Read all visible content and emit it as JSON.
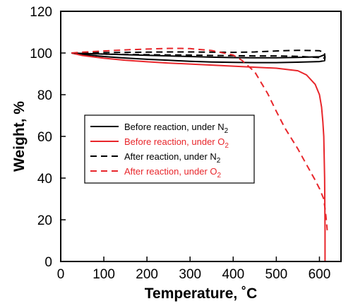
{
  "chart_data": {
    "type": "line",
    "xlabel": "Temperature, ˚C",
    "ylabel": "Weight, %",
    "xlim": [
      0,
      650
    ],
    "ylim": [
      0,
      120
    ],
    "xticks": [
      0,
      100,
      200,
      300,
      400,
      500,
      600
    ],
    "yticks": [
      0,
      20,
      40,
      60,
      80,
      100,
      120
    ],
    "grid": false,
    "legend_position": "center-left",
    "series": [
      {
        "name": "Before reaction, under N",
        "subscript": "2",
        "color": "#000000",
        "dash": "solid",
        "x": [
          25,
          50,
          100,
          150,
          200,
          250,
          300,
          350,
          400,
          450,
          500,
          550,
          600,
          612,
          613,
          612,
          600,
          550,
          500,
          450,
          400,
          350,
          300,
          250,
          200,
          150,
          100,
          50,
          25
        ],
        "y": [
          100,
          99.3,
          98.3,
          97.6,
          97.0,
          96.5,
          96.0,
          95.7,
          95.5,
          95.4,
          95.4,
          95.6,
          95.9,
          96.3,
          98.0,
          99.2,
          98.2,
          97.9,
          97.7,
          97.7,
          97.8,
          98.0,
          98.3,
          98.6,
          98.9,
          99.2,
          99.5,
          99.8,
          100
        ]
      },
      {
        "name": "Before reaction, under O",
        "subscript": "2",
        "color": "#e8262b",
        "dash": "solid",
        "x": [
          25,
          50,
          100,
          150,
          200,
          250,
          300,
          350,
          400,
          450,
          500,
          550,
          570,
          590,
          600,
          605,
          608,
          610,
          612,
          613,
          613
        ],
        "y": [
          100,
          98.8,
          97.5,
          96.5,
          95.8,
          95.2,
          94.7,
          94.2,
          93.7,
          93.2,
          92.7,
          91.5,
          89.5,
          85.0,
          80.0,
          74.0,
          67.0,
          60.0,
          40.0,
          15.0,
          0
        ]
      },
      {
        "name": "After reaction, under N",
        "subscript": "2",
        "color": "#000000",
        "dash": "dashed",
        "x": [
          25,
          50,
          100,
          150,
          200,
          250,
          300,
          350,
          400,
          450,
          500,
          550,
          600,
          612,
          612,
          600,
          550,
          500,
          450,
          400,
          350,
          300,
          250,
          200,
          150,
          100,
          50,
          25
        ],
        "y": [
          100,
          100.1,
          100.2,
          100.3,
          100.4,
          100.5,
          100.5,
          100.4,
          100.3,
          100.5,
          101.0,
          101.3,
          101.1,
          100.2,
          97.5,
          97.8,
          98.4,
          98.6,
          98.6,
          98.7,
          98.8,
          99.0,
          99.1,
          99.2,
          99.3,
          99.5,
          99.7,
          100
        ]
      },
      {
        "name": "After reaction, under O",
        "subscript": "2",
        "color": "#e8262b",
        "dash": "dashed",
        "x": [
          25,
          50,
          100,
          150,
          200,
          250,
          280,
          300,
          350,
          400,
          420,
          450,
          480,
          500,
          520,
          550,
          570,
          590,
          600,
          610,
          615,
          618
        ],
        "y": [
          100,
          100.4,
          101.0,
          101.5,
          101.9,
          102.2,
          102.2,
          102.1,
          101.2,
          99.0,
          96.5,
          91.0,
          80.5,
          72.0,
          64.0,
          54.0,
          46.5,
          39.0,
          35.0,
          30.0,
          22.0,
          15.0
        ]
      }
    ]
  }
}
